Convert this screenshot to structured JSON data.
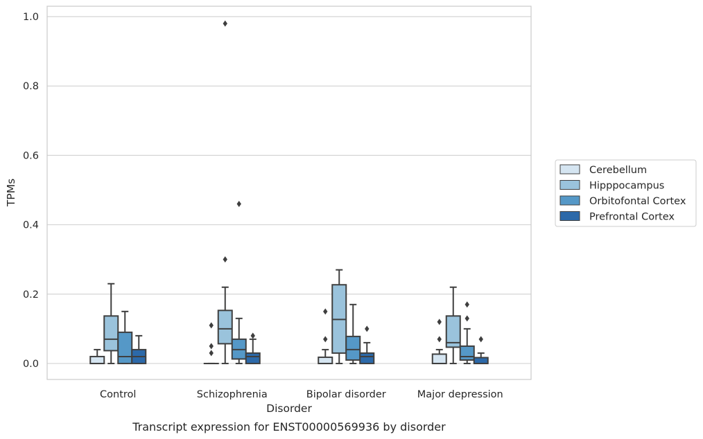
{
  "chart_data": {
    "type": "box",
    "xlabel": "Disorder",
    "ylabel": "TPMs",
    "caption": "Transcript expression for ENST00000569936 by disorder",
    "ylim": [
      -0.046,
      1.03
    ],
    "yticks": [
      0.0,
      0.2,
      0.4,
      0.6,
      0.8,
      1.0
    ],
    "ytick_labels": [
      "0.0",
      "0.2",
      "0.4",
      "0.6",
      "0.8",
      "1.0"
    ],
    "grid": true,
    "legend_position": "right-center",
    "categories": [
      "Control",
      "Schizophrenia",
      "Bipolar disorder",
      "Major depression"
    ],
    "series": [
      {
        "name": "Cerebellum",
        "color": "#d5e5f1",
        "boxes": [
          {
            "whislo": 0.0,
            "q1": 0.0,
            "med": 0.0,
            "q3": 0.02,
            "whishi": 0.04,
            "fliers": []
          },
          {
            "whislo": 0.0,
            "q1": 0.0,
            "med": 0.0,
            "q3": 0.0,
            "whishi": 0.0,
            "fliers": [
              0.11,
              0.05,
              0.03
            ]
          },
          {
            "whislo": 0.0,
            "q1": 0.0,
            "med": 0.0,
            "q3": 0.018,
            "whishi": 0.04,
            "fliers": [
              0.15,
              0.07
            ]
          },
          {
            "whislo": 0.0,
            "q1": 0.0,
            "med": 0.0,
            "q3": 0.027,
            "whishi": 0.04,
            "fliers": [
              0.12,
              0.07
            ]
          }
        ]
      },
      {
        "name": "Hipppocampus",
        "color": "#9ac3dc",
        "boxes": [
          {
            "whislo": 0.0,
            "q1": 0.037,
            "med": 0.07,
            "q3": 0.137,
            "whishi": 0.23,
            "fliers": []
          },
          {
            "whislo": 0.0,
            "q1": 0.057,
            "med": 0.1,
            "q3": 0.153,
            "whishi": 0.22,
            "fliers": [
              0.98,
              0.3
            ]
          },
          {
            "whislo": 0.0,
            "q1": 0.03,
            "med": 0.127,
            "q3": 0.227,
            "whishi": 0.27,
            "fliers": []
          },
          {
            "whislo": 0.0,
            "q1": 0.047,
            "med": 0.06,
            "q3": 0.137,
            "whishi": 0.22,
            "fliers": []
          }
        ]
      },
      {
        "name": "Orbitofontal Cortex",
        "color": "#5598c7",
        "boxes": [
          {
            "whislo": 0.0,
            "q1": 0.0,
            "med": 0.02,
            "q3": 0.09,
            "whishi": 0.15,
            "fliers": []
          },
          {
            "whislo": 0.0,
            "q1": 0.013,
            "med": 0.04,
            "q3": 0.07,
            "whishi": 0.13,
            "fliers": [
              0.46
            ]
          },
          {
            "whislo": 0.0,
            "q1": 0.01,
            "med": 0.04,
            "q3": 0.078,
            "whishi": 0.17,
            "fliers": []
          },
          {
            "whislo": 0.0,
            "q1": 0.01,
            "med": 0.02,
            "q3": 0.05,
            "whishi": 0.1,
            "fliers": [
              0.17,
              0.13
            ]
          }
        ]
      },
      {
        "name": "Prefrontal Cortex",
        "color": "#2c69a9",
        "boxes": [
          {
            "whislo": 0.0,
            "q1": 0.0,
            "med": 0.02,
            "q3": 0.04,
            "whishi": 0.08,
            "fliers": []
          },
          {
            "whislo": 0.0,
            "q1": 0.0,
            "med": 0.02,
            "q3": 0.03,
            "whishi": 0.07,
            "fliers": [
              0.08
            ]
          },
          {
            "whislo": 0.0,
            "q1": 0.0,
            "med": 0.02,
            "q3": 0.03,
            "whishi": 0.06,
            "fliers": [
              0.1
            ]
          },
          {
            "whislo": 0.0,
            "q1": 0.0,
            "med": 0.0,
            "q3": 0.017,
            "whishi": 0.03,
            "fliers": [
              0.07
            ]
          }
        ]
      }
    ]
  }
}
